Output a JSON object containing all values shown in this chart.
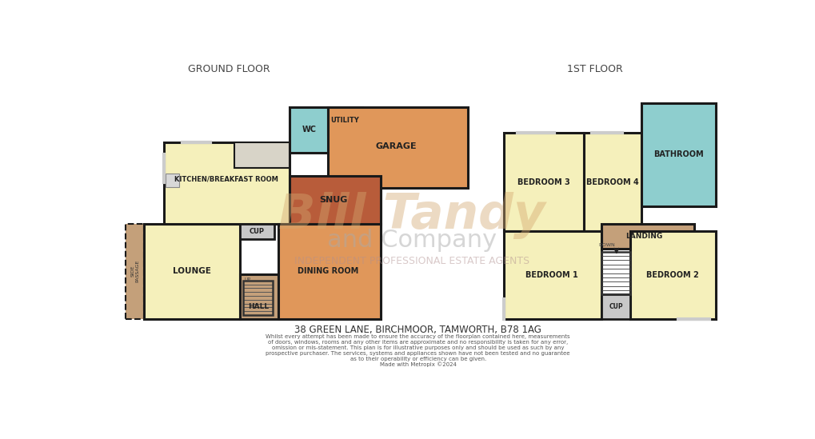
{
  "bg": "#ffffff",
  "colors": {
    "yellow": "#f5f0bb",
    "orange": "#e0975a",
    "dark_orange": "#b85c3a",
    "blue": "#8ecece",
    "tan": "#c4a07a",
    "grey": "#c8c8c8",
    "light_grey": "#d8d4c8",
    "kitchen_grey": "#dedad0"
  },
  "ground_title": "GROUND FLOOR",
  "first_title": "1ST FLOOR",
  "address": "38 GREEN LANE, BIRCHMOOR, TAMWORTH, B78 1AG",
  "disclaimer": "Whilst every attempt has been made to ensure the accuracy of the floorplan contained here, measurements\nof doors, windows, rooms and any other items are approximate and no responsibility is taken for any error,\nomission or mis-statement. This plan is for illustrative purposes only and should be used as such by any\nprospective purchaser. The services, systems and appliances shown have not been tested and no guarantee\nas to their operability or efficiency can be given.\nMade with Metropix ©2024"
}
